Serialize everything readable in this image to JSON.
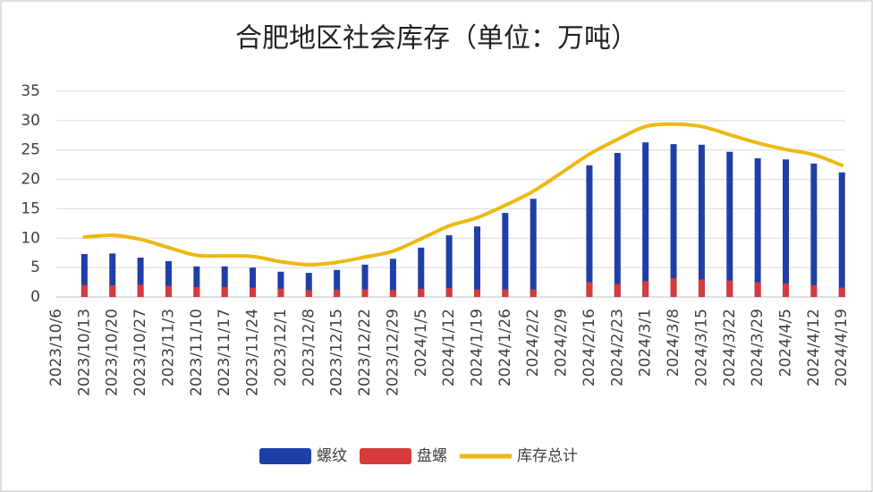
{
  "chart_data": {
    "type": "bar_line",
    "title": "合肥地区社会库存（单位：万吨）",
    "categories": [
      "2023/10/6",
      "2023/10/13",
      "2023/10/20",
      "2023/10/27",
      "2023/11/3",
      "2023/11/10",
      "2023/11/17",
      "2023/11/24",
      "2023/12/1",
      "2023/12/8",
      "2023/12/15",
      "2023/12/22",
      "2023/12/29",
      "2024/1/5",
      "2024/1/12",
      "2024/1/19",
      "2024/1/26",
      "2024/2/2",
      "2024/2/9",
      "2024/2/16",
      "2024/2/23",
      "2024/3/1",
      "2024/3/8",
      "2024/3/15",
      "2024/3/22",
      "2024/3/29",
      "2024/4/5",
      "2024/4/12",
      "2024/4/19"
    ],
    "series": [
      {
        "name": "螺纹",
        "kind": "bar",
        "color": "#1f3fa8",
        "values": [
          null,
          7.3,
          7.4,
          6.7,
          6.1,
          5.2,
          5.2,
          5.0,
          4.3,
          4.1,
          4.6,
          5.5,
          6.5,
          8.4,
          10.5,
          12.0,
          14.3,
          16.7,
          null,
          22.4,
          24.5,
          26.3,
          26.0,
          25.9,
          24.7,
          23.6,
          23.4,
          22.7,
          21.2
        ]
      },
      {
        "name": "盘螺",
        "kind": "bar",
        "color": "#d63a3a",
        "values": [
          null,
          2.0,
          2.0,
          2.1,
          1.9,
          1.7,
          1.7,
          1.6,
          1.4,
          1.2,
          1.2,
          1.3,
          1.2,
          1.4,
          1.5,
          1.3,
          1.3,
          1.3,
          null,
          2.5,
          2.2,
          2.7,
          3.2,
          3.0,
          2.8,
          2.5,
          2.3,
          2.0,
          1.6
        ]
      },
      {
        "name": "库存总计",
        "kind": "line",
        "color": "#ecb912",
        "values": [
          null,
          10.2,
          10.5,
          9.8,
          8.4,
          7.1,
          7.0,
          6.9,
          6.0,
          5.5,
          5.9,
          6.8,
          7.8,
          9.9,
          12.1,
          13.5,
          15.6,
          18.0,
          21.1,
          24.3,
          26.8,
          29.0,
          29.4,
          29.0,
          27.6,
          26.2,
          25.1,
          24.2,
          22.4
        ]
      }
    ],
    "ylim": [
      0,
      35
    ],
    "yticks": [
      0,
      5,
      10,
      15,
      20,
      25,
      30,
      35
    ],
    "grid": true,
    "legend": "bottom"
  }
}
